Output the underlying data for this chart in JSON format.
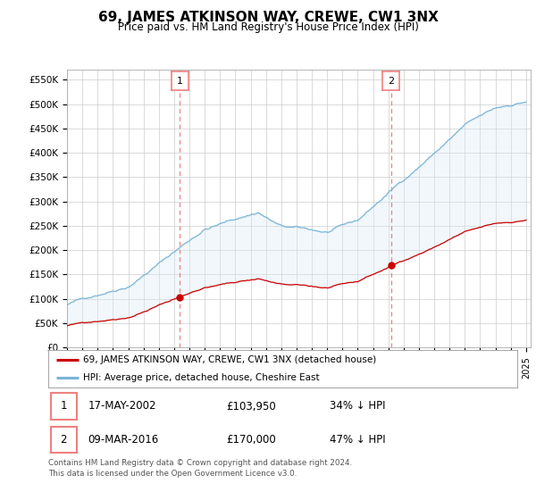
{
  "title": "69, JAMES ATKINSON WAY, CREWE, CW1 3NX",
  "subtitle": "Price paid vs. HM Land Registry's House Price Index (HPI)",
  "ylabel_ticks": [
    0,
    50000,
    100000,
    150000,
    200000,
    250000,
    300000,
    350000,
    400000,
    450000,
    500000,
    550000
  ],
  "ylabel_labels": [
    "£0",
    "£50K",
    "£100K",
    "£150K",
    "£200K",
    "£250K",
    "£300K",
    "£350K",
    "£400K",
    "£450K",
    "£500K",
    "£550K"
  ],
  "ylim": [
    0,
    570000
  ],
  "xlim_start": 1995.0,
  "xlim_end": 2025.3,
  "hpi_color": "#7ab4d8",
  "hpi_fill_color": "#d9eaf5",
  "price_color": "#cc0000",
  "marker_color": "#cc0000",
  "vline_color": "#f08080",
  "background_color": "#ffffff",
  "grid_color": "#cccccc",
  "legend_label_price": "69, JAMES ATKINSON WAY, CREWE, CW1 3NX (detached house)",
  "legend_label_hpi": "HPI: Average price, detached house, Cheshire East",
  "transaction1_date": "17-MAY-2002",
  "transaction1_price": "£103,950",
  "transaction1_hpi": "34% ↓ HPI",
  "transaction1_year": 2002.37,
  "transaction1_value": 103950,
  "transaction2_date": "09-MAR-2016",
  "transaction2_price": "£170,000",
  "transaction2_hpi": "47% ↓ HPI",
  "transaction2_year": 2016.18,
  "transaction2_value": 170000,
  "footer": "Contains HM Land Registry data © Crown copyright and database right 2024.\nThis data is licensed under the Open Government Licence v3.0."
}
